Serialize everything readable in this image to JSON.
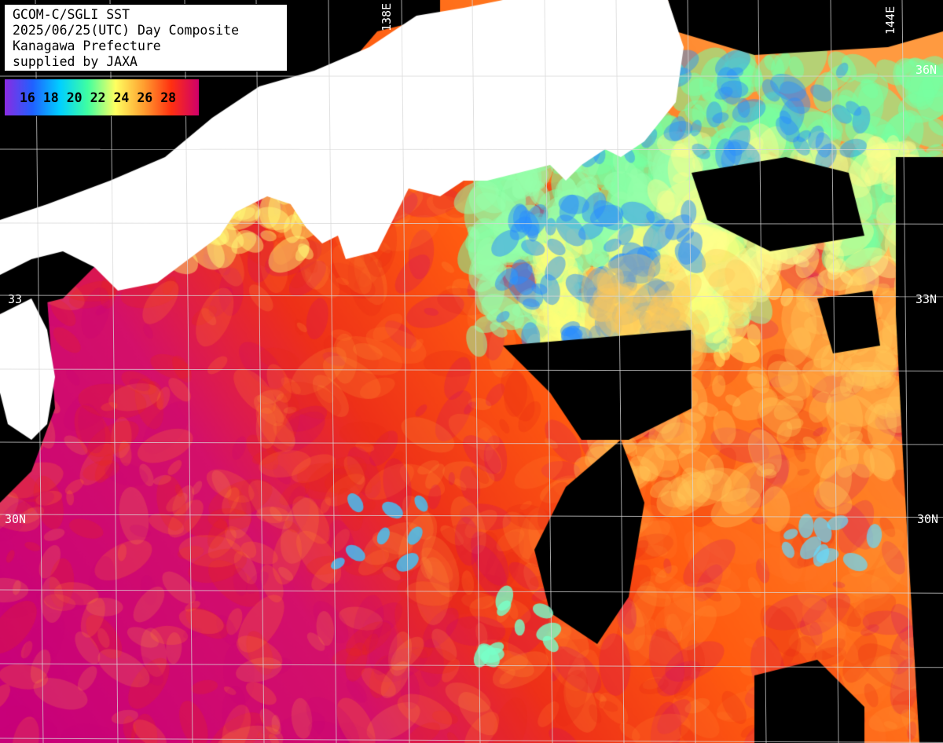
{
  "title": {
    "line1": "GCOM-C/SGLI SST",
    "line2": "2025/06/25(UTC) Day Composite",
    "line3": "Kanagawa Prefecture",
    "line4": "supplied by JAXA"
  },
  "legend": {
    "values": [
      "16",
      "18",
      "20",
      "22",
      "24",
      "26",
      "28"
    ],
    "gradient": [
      "#8a2be2",
      "#2060ff",
      "#00d0ff",
      "#40ffa0",
      "#ffff60",
      "#ffa030",
      "#ff3010",
      "#d0006a"
    ]
  },
  "grid_labels": {
    "lat_36": "36N",
    "lat_33_right": "33N",
    "lat_33_left": "33",
    "lat_30_left": "30N",
    "lat_30_right": "30N",
    "lon_138": "138E",
    "lon_144": "144E"
  },
  "colors": {
    "land": "#ffffff",
    "cloud": "#000000",
    "grid": "#d8d8d8"
  }
}
